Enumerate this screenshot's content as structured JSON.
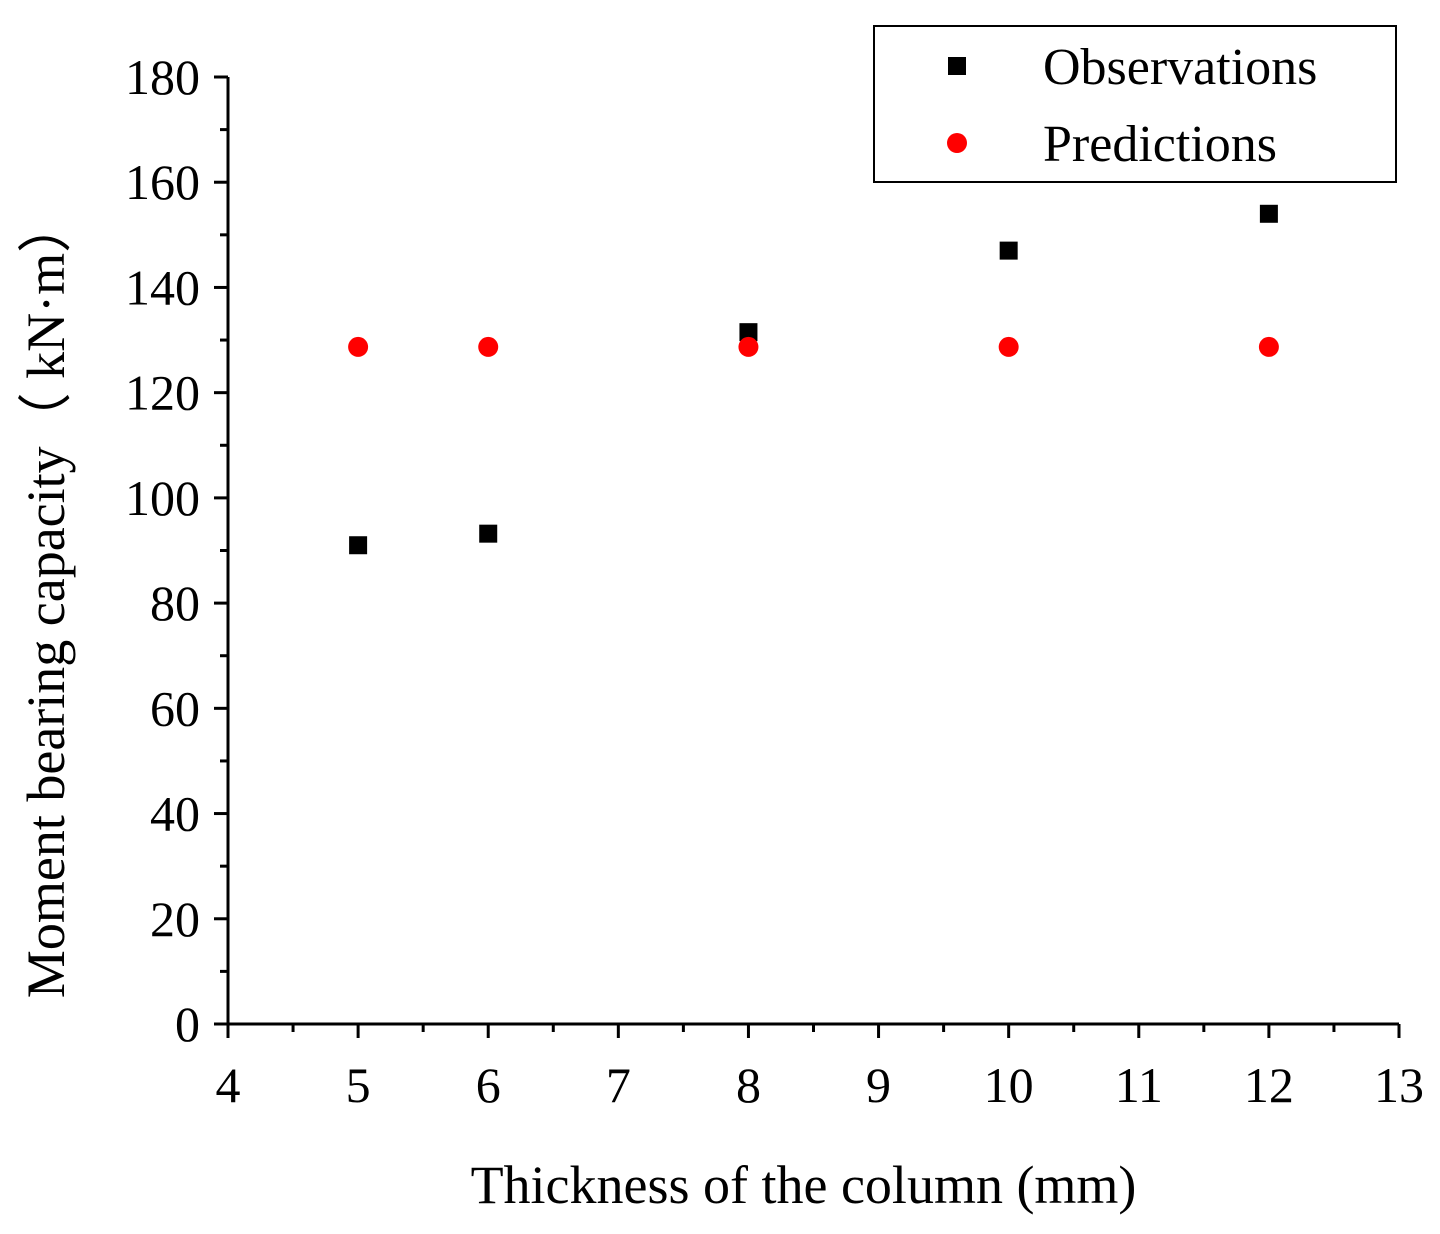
{
  "chart_data": {
    "type": "scatter",
    "title": "",
    "xlabel": "Thickness of the column (mm)",
    "ylabel": "Moment bearing capacity（ kN·m）",
    "xlim": [
      4,
      13
    ],
    "ylim": [
      0,
      180
    ],
    "xticks": [
      4,
      5,
      6,
      7,
      8,
      9,
      10,
      11,
      12,
      13
    ],
    "yticks": [
      0,
      20,
      40,
      60,
      80,
      100,
      120,
      140,
      160,
      180
    ],
    "grid": false,
    "legend_position": "top-right",
    "series": [
      {
        "name": "Observations",
        "marker": "square",
        "color": "#000000",
        "x": [
          5,
          6,
          8,
          10,
          12
        ],
        "y": [
          91,
          93.2,
          131.5,
          147,
          154
        ]
      },
      {
        "name": "Predictions",
        "marker": "circle",
        "color": "#ff0000",
        "x": [
          5,
          6,
          8,
          10,
          12
        ],
        "y": [
          128.7,
          128.7,
          128.7,
          128.7,
          128.7
        ]
      }
    ]
  }
}
